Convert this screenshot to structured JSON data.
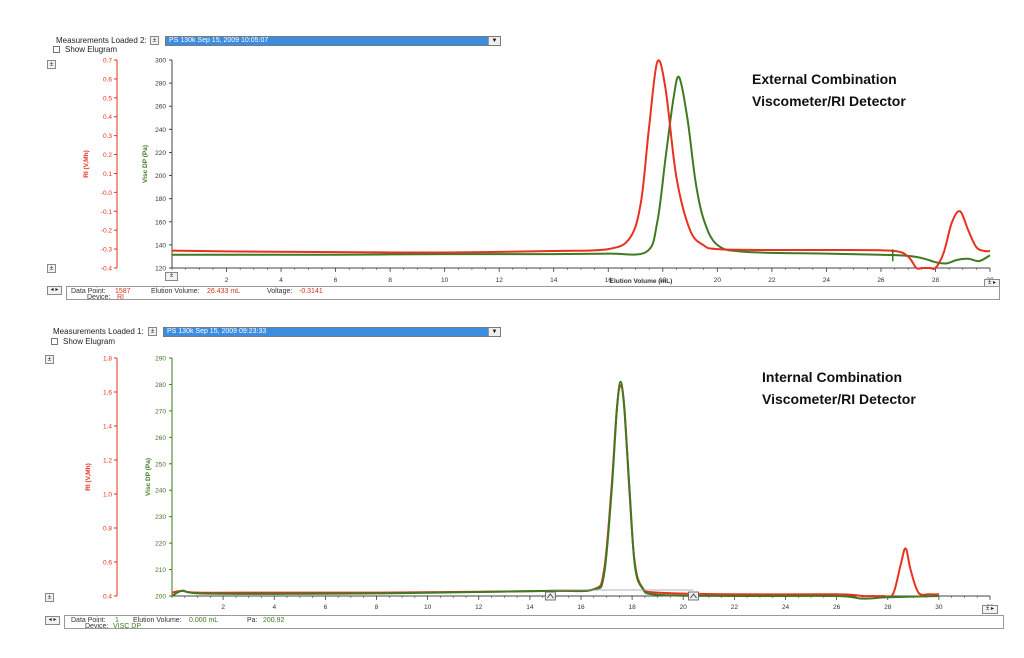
{
  "panels": [
    {
      "measurements_label": "Measurements Loaded 2:",
      "selected_measurement": "PS 130k   Sep 15, 2009   10:05:07",
      "show_elugram_label": "Show Elugram",
      "annotation_line1": "External Combination",
      "annotation_line2": "Viscometer/RI Detector",
      "status": {
        "data_point_label": "Data Point:",
        "data_point_value": "1587",
        "elution_label": "Elution Volume:",
        "elution_value": "26.433 mL",
        "third_label": "Voltage:",
        "third_value": "-0.3141",
        "device_label": "Device:",
        "device_value": "RI"
      }
    },
    {
      "measurements_label": "Measurements Loaded 1:",
      "selected_measurement": "PS 130k   Sep 15, 2009   09:23:33",
      "show_elugram_label": "Show Elugram",
      "annotation_line1": "Internal Combination",
      "annotation_line2": "Viscometer/RI Detector",
      "status": {
        "data_point_label": "Data Point:",
        "data_point_value": "1",
        "elution_label": "Elution Volume:",
        "elution_value": "0.000 mL",
        "third_label": "Pa:",
        "third_value": "200.92",
        "device_label": "Device:",
        "device_value": "VISC DP"
      }
    }
  ],
  "colors": {
    "ri": "#e8311f",
    "visc": "#3f7a22",
    "axis": "#444444"
  },
  "chart_data": [
    {
      "type": "line",
      "xlabel": "Elution Volume (mL)",
      "ylabel_left": "RI (V,Mh)",
      "ylabel_right": "Visc DP (Pa)",
      "xlim": [
        0,
        30
      ],
      "ylim_left": [
        -0.4,
        0.7
      ],
      "ylim_right": [
        120,
        300
      ],
      "x_ticks": [
        2,
        4,
        6,
        8,
        10,
        12,
        14,
        16,
        18,
        20,
        22,
        24,
        26,
        28,
        30
      ],
      "y_left_ticks": [
        -0.4,
        -0.3,
        -0.2,
        -0.1,
        0.0,
        0.1,
        0.2,
        0.3,
        0.4,
        0.5,
        0.6,
        0.7
      ],
      "y_left_tick_labels": [
        "-0.4",
        "-0.3",
        "-0.2",
        "-0.1",
        "-0.0",
        "0.1",
        "0.2",
        "0.3",
        "0.4",
        "0.5",
        "0.6",
        "0.7"
      ],
      "y_right_ticks": [
        120,
        140,
        160,
        180,
        200,
        220,
        240,
        260,
        280,
        300
      ],
      "series": [
        {
          "name": "RI",
          "axis": "left",
          "x": [
            0,
            2,
            6,
            10,
            14,
            16,
            16.8,
            17.2,
            17.5,
            17.8,
            18.1,
            18.5,
            19,
            19.5,
            20,
            22,
            25,
            26.5,
            27,
            27.3,
            27.5,
            27.8,
            28,
            28.3,
            28.6,
            28.9,
            29.2,
            29.5,
            29.8,
            30
          ],
          "y": [
            -0.308,
            -0.312,
            -0.316,
            -0.318,
            -0.31,
            -0.3,
            -0.24,
            -0.05,
            0.35,
            0.69,
            0.55,
            0.08,
            -0.2,
            -0.28,
            -0.3,
            -0.305,
            -0.305,
            -0.31,
            -0.34,
            -0.4,
            -0.4,
            -0.4,
            -0.4,
            -0.32,
            -0.16,
            -0.1,
            -0.2,
            -0.29,
            -0.31,
            -0.31
          ]
        },
        {
          "name": "Visc DP",
          "axis": "right",
          "x": [
            0,
            2,
            6,
            10,
            14,
            16,
            17.4,
            17.8,
            18.1,
            18.4,
            18.6,
            18.9,
            19.2,
            19.5,
            20,
            21,
            24,
            26,
            27,
            27.6,
            28,
            28.4,
            28.8,
            29.2,
            29.6,
            30
          ],
          "y": [
            131.5,
            131.5,
            131.5,
            132,
            132,
            132.5,
            134,
            160,
            215,
            268,
            285,
            250,
            195,
            162,
            140,
            134,
            132.5,
            131.5,
            130.5,
            128,
            125,
            124,
            127,
            128,
            126,
            131
          ]
        }
      ]
    },
    {
      "type": "line",
      "xlabel": "",
      "ylabel_left": "RI (V,Mh)",
      "ylabel_right": "Visc DP (Pa)",
      "xlim": [
        0,
        32
      ],
      "ylim_left": [
        0.4,
        1.8
      ],
      "ylim_right": [
        200,
        290
      ],
      "x_ticks": [
        2,
        4,
        6,
        8,
        10,
        12,
        14,
        16,
        18,
        20,
        22,
        24,
        26,
        28,
        30,
        32
      ],
      "y_left_ticks": [
        0.4,
        0.6,
        0.8,
        1.0,
        1.2,
        1.4,
        1.6,
        1.8
      ],
      "y_left_tick_labels": [
        "0.4",
        "0.6",
        "0.8",
        "1.0",
        "1.2",
        "1.4",
        "1.6",
        "1.8"
      ],
      "y_right_ticks": [
        200,
        210,
        220,
        230,
        240,
        250,
        260,
        270,
        280,
        290
      ],
      "series": [
        {
          "name": "RI",
          "axis": "left",
          "x": [
            0,
            0.4,
            1,
            4,
            8,
            12,
            15,
            16.5,
            16.9,
            17.2,
            17.4,
            17.55,
            17.7,
            17.9,
            18.1,
            18.4,
            19,
            22,
            26,
            27,
            27.4,
            27.8,
            28.2,
            28.5,
            28.7,
            28.9,
            29.2,
            29.6,
            30
          ],
          "y": [
            0.42,
            0.43,
            0.42,
            0.42,
            0.42,
            0.425,
            0.43,
            0.44,
            0.55,
            1.05,
            1.5,
            1.64,
            1.5,
            1.0,
            0.6,
            0.45,
            0.42,
            0.41,
            0.41,
            0.4,
            0.4,
            0.4,
            0.41,
            0.58,
            0.68,
            0.55,
            0.42,
            0.41,
            0.41
          ]
        },
        {
          "name": "Visc DP",
          "axis": "right",
          "x": [
            0,
            0.4,
            1,
            4,
            8,
            12,
            15,
            16.5,
            16.9,
            17.2,
            17.4,
            17.55,
            17.7,
            17.9,
            18.1,
            18.4,
            19,
            22,
            26,
            27,
            28,
            30
          ],
          "y": [
            200,
            202,
            201,
            200.8,
            201,
            201.5,
            202,
            202.5,
            208,
            240,
            270,
            281,
            270,
            240,
            212,
            203,
            200.5,
            200,
            200,
            199,
            199.5,
            200
          ]
        }
      ]
    }
  ]
}
